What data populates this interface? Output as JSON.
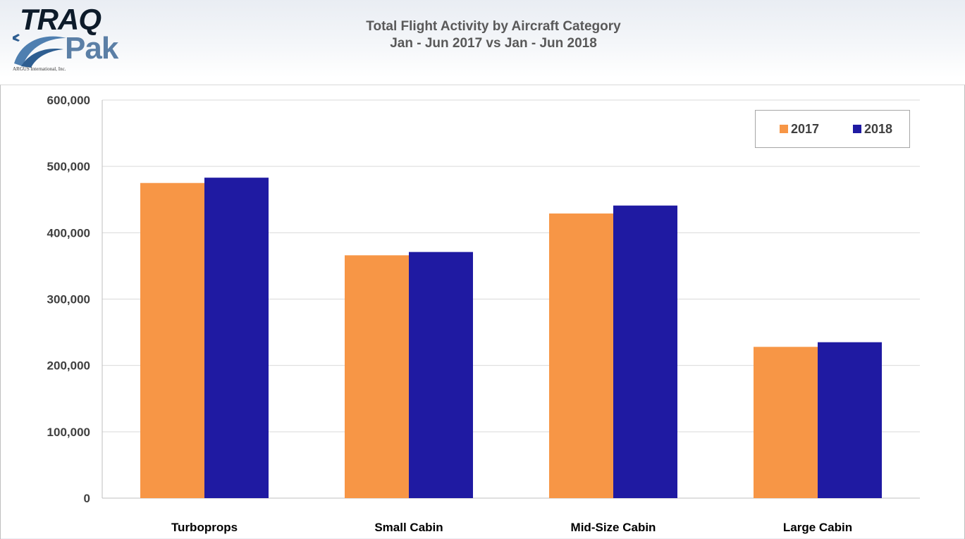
{
  "logo": {
    "text_main": "TRAQ",
    "text_secondary": "Pak",
    "company": "ARGUS International, Inc."
  },
  "colors": {
    "series_2017": "#f79646",
    "series_2018": "#1f1aa2",
    "grid": "#d9d9d9",
    "axis_text": "#404040"
  },
  "chart_data": {
    "type": "bar",
    "title": "Total Flight Activity by Aircraft Category",
    "subtitle": "Jan - Jun 2017 vs Jan - Jun 2018",
    "categories": [
      "Turboprops",
      "Small Cabin",
      "Mid-Size Cabin",
      "Large Cabin"
    ],
    "series": [
      {
        "name": "2017",
        "values": [
          475000,
          366000,
          429000,
          228000
        ]
      },
      {
        "name": "2018",
        "values": [
          483000,
          371000,
          441000,
          235000
        ]
      }
    ],
    "ylim": [
      0,
      600000
    ],
    "yticks": [
      0,
      100000,
      200000,
      300000,
      400000,
      500000,
      600000
    ],
    "ytick_labels": [
      "0",
      "100,000",
      "200,000",
      "300,000",
      "400,000",
      "500,000",
      "600,000"
    ],
    "grid": true,
    "legend_position": "top-right"
  }
}
